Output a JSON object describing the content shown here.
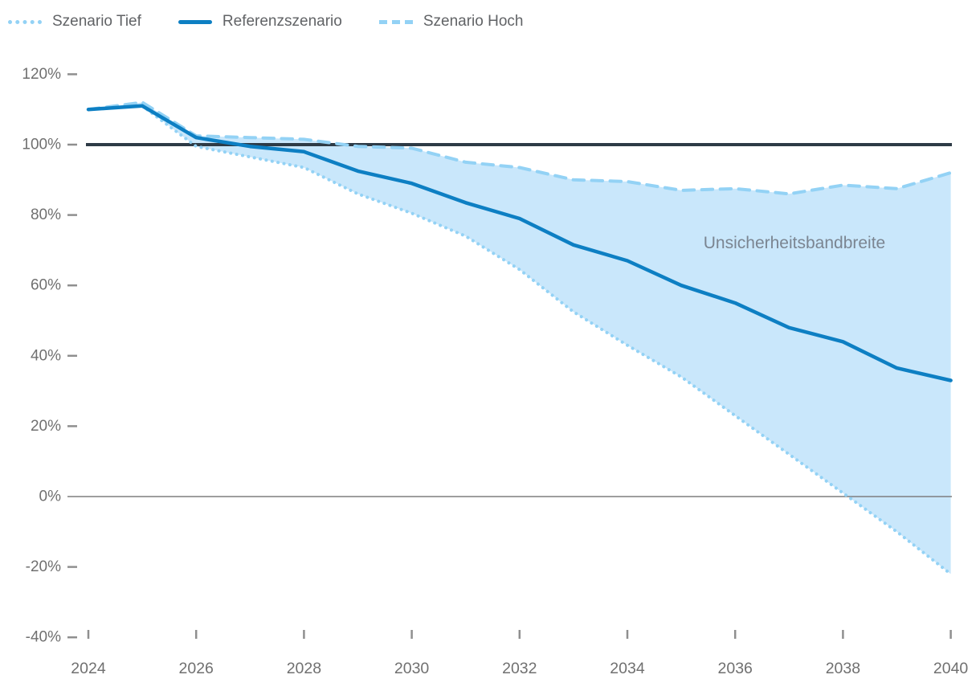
{
  "legend": {
    "items": [
      {
        "label": "Szenario Tief",
        "style": "dotted",
        "color": "#93d2f5"
      },
      {
        "label": "Referenzszenario",
        "style": "solid",
        "color": "#0d7fc3"
      },
      {
        "label": "Szenario Hoch",
        "style": "dashed",
        "color": "#93d2f5"
      }
    ]
  },
  "chart_data": {
    "type": "line",
    "x": [
      2024,
      2025,
      2026,
      2027,
      2028,
      2029,
      2030,
      2031,
      2032,
      2033,
      2034,
      2035,
      2036,
      2037,
      2038,
      2039,
      2040
    ],
    "series": [
      {
        "name": "Szenario Tief",
        "style": "dotted",
        "color": "#93d2f5",
        "values": [
          110,
          111,
          99.5,
          96.5,
          93.5,
          86,
          80.5,
          74,
          64.5,
          52.5,
          43,
          34,
          23,
          12,
          1,
          -10,
          -22
        ]
      },
      {
        "name": "Referenzszenario",
        "style": "solid",
        "color": "#0d7fc3",
        "values": [
          110,
          111,
          102,
          99.5,
          98,
          92.5,
          89,
          83.5,
          79,
          71.5,
          67,
          60,
          55,
          48,
          44,
          36.5,
          33
        ]
      },
      {
        "name": "Szenario Hoch",
        "style": "dashed",
        "color": "#93d2f5",
        "values": [
          110,
          112,
          102.5,
          102,
          101.5,
          99.5,
          99,
          95,
          93.5,
          90,
          89.5,
          87,
          87.5,
          86,
          88.5,
          87.5,
          92
        ]
      }
    ],
    "band": {
      "between": [
        "Szenario Tief",
        "Szenario Hoch"
      ],
      "fill": "#c9e7fb"
    },
    "annotation": {
      "text": "Unsicherheitsbandbreite",
      "x_year": 2037.1,
      "y_value": 70.5,
      "color": "#7b8591"
    },
    "y_ticks": [
      "120%",
      "100%",
      "80%",
      "60%",
      "40%",
      "20%",
      "0%",
      "-20%",
      "-40%"
    ],
    "x_ticks": [
      2024,
      2026,
      2028,
      2030,
      2032,
      2034,
      2036,
      2038,
      2040
    ],
    "ylim": [
      -40,
      120
    ],
    "xlim": [
      2024,
      2040
    ],
    "reference_lines": [
      {
        "value": 100,
        "color": "#2e3b46",
        "width": 4
      },
      {
        "value": 0,
        "color": "#7f7f7f",
        "width": 1.5
      }
    ],
    "grid": "off",
    "legend_position": "top-left",
    "title": "",
    "xlabel": "",
    "ylabel": ""
  }
}
